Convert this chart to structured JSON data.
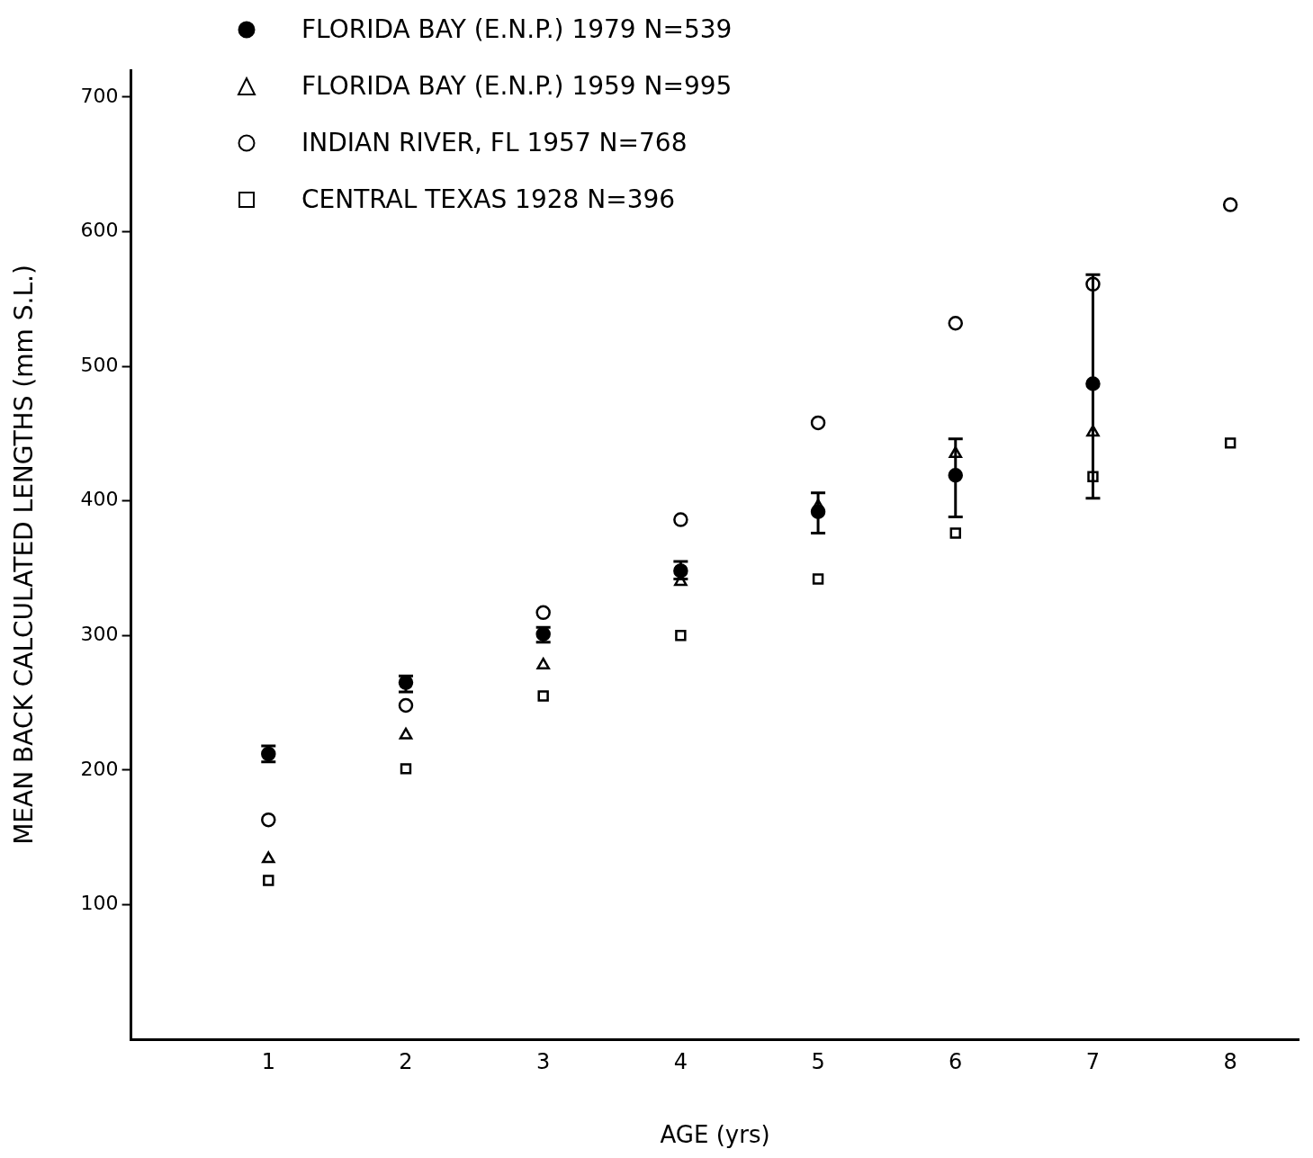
{
  "chart_data": {
    "type": "scatter",
    "xlabel": "AGE (yrs)",
    "ylabel": "MEAN BACK CALCULATED LENGTHS (mm S.L.)",
    "x": [
      1,
      2,
      3,
      4,
      5,
      6,
      7,
      8
    ],
    "xlim": [
      0,
      8.5
    ],
    "xticks": [
      1,
      2,
      3,
      4,
      5,
      6,
      7,
      8
    ],
    "ylim": [
      0,
      720
    ],
    "yticks": [
      100,
      200,
      300,
      400,
      500,
      600,
      700
    ],
    "grid": false,
    "legend": "top left",
    "series": [
      {
        "name": "FLORIDA BAY (E.N.P.) 1979 N=539",
        "color": "#000000",
        "marker": "circle",
        "values": [
          212,
          265,
          301,
          348,
          392,
          419,
          487,
          null
        ],
        "errors": [
          [
            206,
            218
          ],
          [
            258,
            270
          ],
          [
            295,
            306
          ],
          [
            342,
            355
          ],
          [
            376,
            406
          ],
          [
            388,
            446
          ],
          [
            402,
            568
          ],
          null
        ]
      },
      {
        "name": "FLORIDA BAY (E.N.P.) 1959 N=995",
        "color": "#000000",
        "marker": "triangle",
        "values": [
          134,
          226,
          278,
          340,
          396,
          435,
          451,
          null
        ]
      },
      {
        "name": "INDIAN RIVER, FL 1957 N=768",
        "color": "#000000",
        "marker": "circle",
        "values": [
          163,
          248,
          317,
          386,
          458,
          532,
          561,
          620
        ]
      },
      {
        "name": "CENTRAL TEXAS 1928 N=396",
        "color": "#000000",
        "marker": "square",
        "values": [
          118,
          201,
          255,
          300,
          342,
          376,
          418,
          443
        ]
      }
    ]
  }
}
